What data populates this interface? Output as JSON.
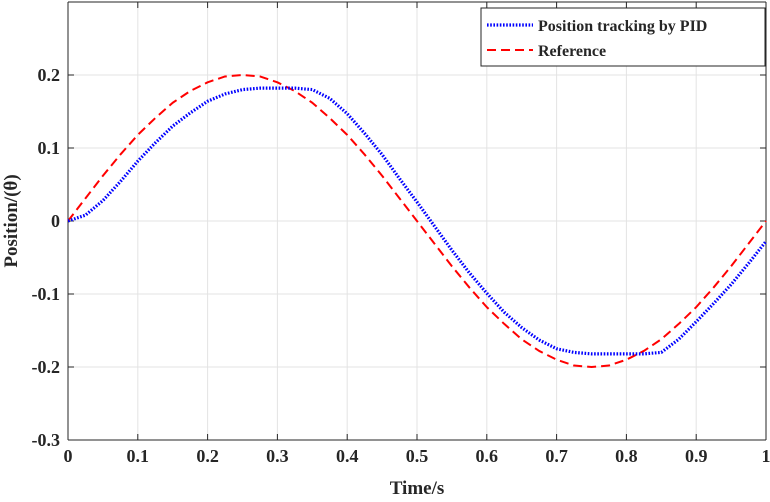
{
  "chart_data": {
    "type": "line",
    "title": "",
    "xlabel": "Time/s",
    "ylabel": "Position/(θ)",
    "xlim": [
      0,
      1
    ],
    "ylim": [
      -0.3,
      0.3
    ],
    "grid": true,
    "legend_position": "top-right",
    "x_ticks": [
      0,
      0.1,
      0.2,
      0.3,
      0.4,
      0.5,
      0.6,
      0.7,
      0.8,
      0.9,
      1
    ],
    "x_tick_labels": [
      "0",
      "0.1",
      "0.2",
      "0.3",
      "0.4",
      "0.5",
      "0.6",
      "0.7",
      "0.8",
      "0.9",
      "1"
    ],
    "y_ticks": [
      0.2,
      0.1,
      0,
      -0.1,
      -0.2,
      -0.3
    ],
    "y_tick_labels": [
      "0.2",
      "0.1",
      "0",
      "-0.1",
      "-0.2",
      "-0.3"
    ],
    "x": [
      0,
      0.025,
      0.05,
      0.075,
      0.1,
      0.125,
      0.15,
      0.175,
      0.2,
      0.225,
      0.25,
      0.275,
      0.3,
      0.325,
      0.35,
      0.375,
      0.4,
      0.425,
      0.45,
      0.475,
      0.5,
      0.525,
      0.55,
      0.575,
      0.6,
      0.625,
      0.65,
      0.675,
      0.7,
      0.725,
      0.75,
      0.775,
      0.8,
      0.825,
      0.85,
      0.875,
      0.9,
      0.925,
      0.95,
      0.975,
      1
    ],
    "series": [
      {
        "name": "Position tracking by PID",
        "color": "#0000ff",
        "line_style": "dotted",
        "values": [
          0,
          0.008,
          0.028,
          0.054,
          0.082,
          0.107,
          0.13,
          0.148,
          0.164,
          0.174,
          0.18,
          0.182,
          0.182,
          0.182,
          0.18,
          0.168,
          0.147,
          0.12,
          0.091,
          0.058,
          0.026,
          -0.007,
          -0.04,
          -0.071,
          -0.099,
          -0.125,
          -0.146,
          -0.163,
          -0.175,
          -0.18,
          -0.182,
          -0.182,
          -0.182,
          -0.182,
          -0.18,
          -0.162,
          -0.138,
          -0.113,
          -0.087,
          -0.058,
          -0.028
        ]
      },
      {
        "name": "Reference",
        "color": "#ff0000",
        "line_style": "dashed",
        "values": [
          0,
          0.031,
          0.062,
          0.091,
          0.118,
          0.141,
          0.162,
          0.178,
          0.19,
          0.198,
          0.2,
          0.198,
          0.19,
          0.178,
          0.162,
          0.141,
          0.118,
          0.091,
          0.062,
          0.031,
          0,
          -0.031,
          -0.062,
          -0.091,
          -0.118,
          -0.141,
          -0.162,
          -0.178,
          -0.19,
          -0.198,
          -0.2,
          -0.198,
          -0.19,
          -0.178,
          -0.162,
          -0.141,
          -0.118,
          -0.091,
          -0.062,
          -0.031,
          0
        ]
      }
    ]
  }
}
